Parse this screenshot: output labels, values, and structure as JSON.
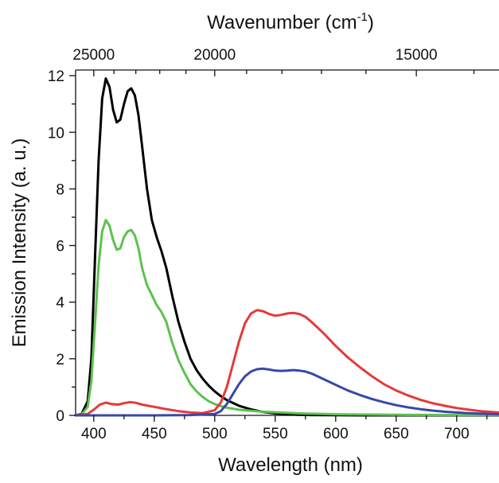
{
  "chart_data": {
    "type": "line",
    "xlabel": "Wavelength (nm)",
    "ylabel": "Emission Intensity (a. u.)",
    "top_axis_label": {
      "text": "Wavenumber (cm",
      "sup": "-1",
      "close": ")"
    },
    "xlim": [
      385,
      735
    ],
    "ylim": [
      0,
      12.2
    ],
    "x_ticks": [
      400,
      450,
      500,
      550,
      600,
      650,
      700
    ],
    "y_ticks": [
      0,
      2,
      4,
      6,
      8,
      10,
      12
    ],
    "top_ticks": [
      25000,
      20000,
      15000
    ],
    "grid": false,
    "series": [
      {
        "color": "#000000",
        "x": [
          385,
          390,
          395,
          398,
          401,
          404,
          407,
          410,
          413,
          416,
          419,
          422,
          425,
          428,
          431,
          434,
          437,
          440,
          444,
          448,
          452,
          456,
          460,
          465,
          470,
          475,
          480,
          485,
          490,
          495,
          500,
          505,
          510,
          520,
          530,
          540,
          550,
          560,
          570,
          580,
          600,
          620,
          650,
          700,
          735
        ],
        "y": [
          0,
          0.05,
          0.5,
          2.0,
          5.5,
          9.0,
          11.2,
          11.9,
          11.6,
          10.8,
          10.35,
          10.45,
          11.0,
          11.45,
          11.55,
          11.3,
          10.6,
          9.5,
          8.0,
          6.9,
          6.3,
          5.8,
          5.2,
          4.2,
          3.3,
          2.6,
          2.0,
          1.6,
          1.3,
          1.05,
          0.85,
          0.68,
          0.54,
          0.34,
          0.21,
          0.12,
          0.07,
          0.04,
          0.02,
          0.01,
          0.005,
          0,
          0,
          0,
          0
        ]
      },
      {
        "color": "#5ec14f",
        "x": [
          385,
          390,
          395,
          398,
          401,
          404,
          407,
          410,
          413,
          416,
          419,
          422,
          425,
          428,
          431,
          434,
          437,
          440,
          444,
          448,
          452,
          456,
          460,
          465,
          470,
          475,
          480,
          485,
          490,
          495,
          500,
          505,
          510,
          520,
          530,
          540,
          550,
          560,
          570,
          580,
          600,
          620,
          650,
          700,
          735
        ],
        "y": [
          0,
          0.03,
          0.3,
          1.2,
          3.2,
          5.3,
          6.5,
          6.9,
          6.7,
          6.2,
          5.85,
          5.9,
          6.3,
          6.5,
          6.55,
          6.35,
          5.9,
          5.2,
          4.6,
          4.25,
          3.9,
          3.65,
          3.3,
          2.55,
          1.95,
          1.5,
          1.1,
          0.85,
          0.65,
          0.5,
          0.4,
          0.33,
          0.27,
          0.2,
          0.16,
          0.13,
          0.11,
          0.09,
          0.07,
          0.06,
          0.04,
          0.03,
          0.02,
          0.01,
          0.01
        ]
      },
      {
        "color": "#e53a3a",
        "x": [
          385,
          395,
          400,
          405,
          410,
          415,
          420,
          425,
          430,
          435,
          440,
          450,
          460,
          470,
          480,
          490,
          500,
          505,
          510,
          515,
          520,
          525,
          530,
          535,
          540,
          545,
          550,
          555,
          560,
          565,
          570,
          575,
          580,
          585,
          590,
          600,
          610,
          620,
          630,
          640,
          650,
          660,
          670,
          680,
          690,
          700,
          710,
          720,
          735
        ],
        "y": [
          0,
          0.05,
          0.2,
          0.38,
          0.45,
          0.4,
          0.38,
          0.43,
          0.47,
          0.44,
          0.38,
          0.3,
          0.22,
          0.15,
          0.1,
          0.08,
          0.18,
          0.45,
          1.0,
          1.8,
          2.6,
          3.25,
          3.6,
          3.72,
          3.68,
          3.58,
          3.52,
          3.55,
          3.6,
          3.62,
          3.58,
          3.48,
          3.3,
          3.1,
          2.9,
          2.45,
          2.05,
          1.7,
          1.38,
          1.1,
          0.88,
          0.7,
          0.55,
          0.43,
          0.34,
          0.26,
          0.2,
          0.15,
          0.1
        ]
      },
      {
        "color": "#3848a8",
        "x": [
          385,
          450,
          480,
          500,
          505,
          510,
          515,
          520,
          525,
          530,
          535,
          540,
          545,
          550,
          555,
          560,
          565,
          570,
          575,
          580,
          585,
          590,
          600,
          610,
          620,
          630,
          640,
          650,
          660,
          670,
          680,
          690,
          700,
          710,
          720,
          735
        ],
        "y": [
          0,
          0,
          0.01,
          0.05,
          0.15,
          0.4,
          0.75,
          1.1,
          1.38,
          1.55,
          1.63,
          1.65,
          1.62,
          1.58,
          1.57,
          1.58,
          1.6,
          1.58,
          1.55,
          1.48,
          1.38,
          1.28,
          1.08,
          0.88,
          0.72,
          0.58,
          0.46,
          0.36,
          0.28,
          0.22,
          0.17,
          0.13,
          0.1,
          0.08,
          0.06,
          0.04
        ]
      }
    ]
  }
}
